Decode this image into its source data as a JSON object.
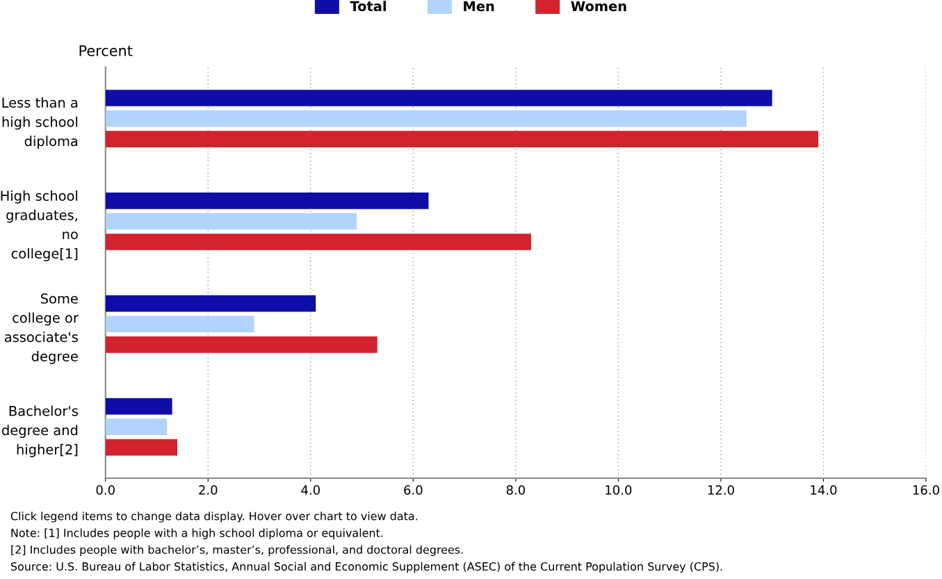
{
  "chart_data": {
    "type": "bar",
    "orientation": "horizontal",
    "xlabel": "Percent",
    "categories": [
      "Less than a\nhigh school\ndiploma",
      "High school\ngraduates,\nno\ncollege[1]",
      "Some\ncollege or\nassociate's\ndegree",
      "Bachelor's\ndegree and\nhigher[2]"
    ],
    "series": [
      {
        "name": "Total",
        "color": "#0e0ea6",
        "values": [
          13.0,
          6.3,
          4.1,
          1.3
        ]
      },
      {
        "name": "Men",
        "color": "#b0d4fc",
        "values": [
          12.5,
          4.9,
          2.9,
          1.2
        ]
      },
      {
        "name": "Women",
        "color": "#d2232e",
        "values": [
          13.9,
          8.3,
          5.3,
          1.4
        ]
      }
    ],
    "xlim": [
      0,
      16
    ],
    "xticks": [
      {
        "value": 0,
        "label": "0.0"
      },
      {
        "value": 2,
        "label": "2.0"
      },
      {
        "value": 4,
        "label": "4.0"
      },
      {
        "value": 6,
        "label": "6.0"
      },
      {
        "value": 8,
        "label": "8.0"
      },
      {
        "value": 10,
        "label": "10.0"
      },
      {
        "value": 12,
        "label": "12.0"
      },
      {
        "value": 14,
        "label": "14.0"
      },
      {
        "value": 16,
        "label": "16.0"
      }
    ],
    "grid": "x",
    "legend": "top",
    "annotations": [
      "Click legend items to change data display. Hover over chart to view data.",
      "Note: [1] Includes people with a high school diploma or equivalent.",
      "[2] Includes people with bachelor’s, master’s, professional, and doctoral degrees.",
      "Source: U.S. Bureau of Labor Statistics, Annual Social and Economic Supplement (ASEC) of the Current Population Survey (CPS)."
    ]
  }
}
